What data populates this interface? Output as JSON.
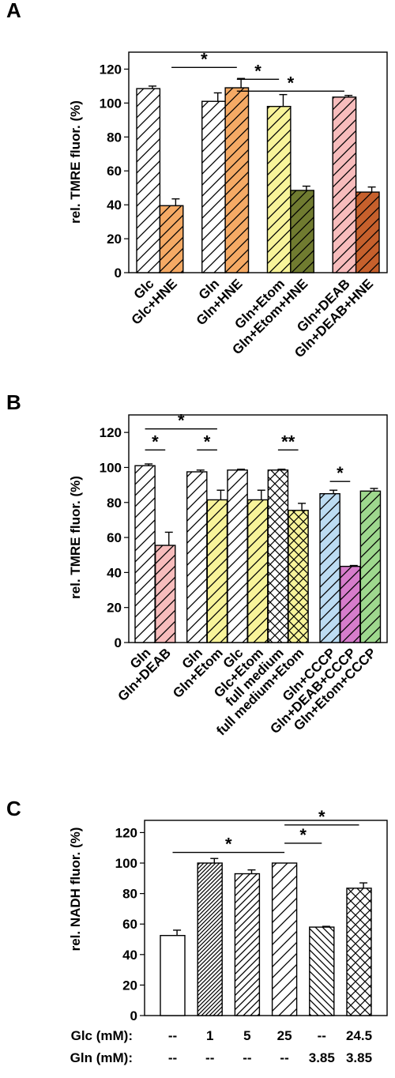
{
  "chart_data": [
    {
      "panel": "A",
      "type": "bar",
      "ylabel": "rel. TMRE fluor. (%)",
      "ylim": [
        0,
        130
      ],
      "yticks": [
        0,
        20,
        40,
        60,
        80,
        100,
        120
      ],
      "categories": [
        "Glc",
        "Glc+HNE",
        "Gln",
        "Gln+HNE",
        "Gln+Etom",
        "Gln+Etom+HNE",
        "Gln+DEAB",
        "Gln+DEAB+HNE"
      ],
      "values": [
        108.5,
        39.5,
        101,
        109,
        98,
        48.5,
        103.5,
        47.5
      ],
      "errors": [
        1.5,
        4,
        5,
        5.5,
        7,
        2.5,
        1,
        3
      ],
      "groups": [
        [
          0,
          1
        ],
        [
          2,
          3
        ],
        [
          4,
          5
        ],
        [
          6,
          7
        ]
      ],
      "colors": [
        "#ffffff",
        "#f5aa65",
        "#ffffff",
        "#f5aa65",
        "#f8f49a",
        "#707b30",
        "#f7bcbc",
        "#c6602c"
      ],
      "patterns": [
        "diag-wide",
        "diag-wide",
        "diag-wide",
        "diag-wide",
        "diag-wide",
        "diag-wide",
        "diag-wide",
        "diag-wide"
      ],
      "significance": [
        {
          "from": 1,
          "to": 3,
          "label": "*",
          "y": 121
        },
        {
          "from": 3,
          "to": 4,
          "label": "*",
          "y": 114
        },
        {
          "from": 3,
          "to": 6,
          "label": "*",
          "y": 107
        }
      ]
    },
    {
      "panel": "B",
      "type": "bar",
      "ylabel": "rel. TMRE fluor. (%)",
      "ylim": [
        0,
        130
      ],
      "yticks": [
        0,
        20,
        40,
        60,
        80,
        100,
        120
      ],
      "categories": [
        "Gln",
        "Gln+DEAB",
        "Gln",
        "Gln+Etom",
        "Glc",
        "Glc+Etom",
        "full medium",
        "full medium+Etom",
        "Gln+CCCP",
        "Gln+DEAB+CCCP",
        "Gln+Etom+CCCP"
      ],
      "values": [
        101,
        55.5,
        97.5,
        81.5,
        98.5,
        81.5,
        98.5,
        75.5,
        85,
        43.5,
        86.5
      ],
      "errors": [
        1,
        7.5,
        1,
        5.5,
        0.5,
        5.5,
        0.5,
        4,
        2,
        0.5,
        1.5
      ],
      "groups": [
        [
          0,
          1
        ],
        [
          2,
          3,
          4,
          5,
          6,
          7
        ],
        [
          8,
          9,
          10
        ]
      ],
      "colors": [
        "#ffffff",
        "#f7bcbc",
        "#ffffff",
        "#f8f49a",
        "#ffffff",
        "#f8f49a",
        "#ffffff",
        "#f8f49a",
        "#bcdcf2",
        "#d67ccb",
        "#9ed88e"
      ],
      "patterns": [
        "diag-wide",
        "diag-wide",
        "diag-wide",
        "diag-wide",
        "diag-wide",
        "diag-wide",
        "cross",
        "cross",
        "diag-wide",
        "diag-wide",
        "diag-wide"
      ],
      "significance": [
        {
          "from": 0,
          "to": 1,
          "label": "*",
          "y": 110
        },
        {
          "from": 0,
          "to": 3,
          "label": "*",
          "y": 122
        },
        {
          "from": 2,
          "to": 3,
          "label": "*",
          "y": 110
        },
        {
          "from": 6,
          "to": 7,
          "label": "**",
          "y": 110
        },
        {
          "from": 8,
          "to": 9,
          "label": "*",
          "y": 92
        }
      ]
    },
    {
      "panel": "C",
      "type": "bar",
      "ylabel": "rel. NADH fluor. (%)",
      "ylim": [
        0,
        128
      ],
      "yticks": [
        0,
        20,
        40,
        60,
        80,
        100,
        120
      ],
      "categories": [
        "",
        "",
        "",
        "",
        "",
        ""
      ],
      "values": [
        52.5,
        100,
        93,
        100,
        58,
        83.5
      ],
      "errors": [
        3.5,
        3,
        2.5,
        0,
        0.5,
        3.5
      ],
      "groups": [
        [
          0
        ],
        [
          1
        ],
        [
          2
        ],
        [
          3
        ],
        [
          4
        ],
        [
          5
        ]
      ],
      "colors": [
        "#ffffff",
        "#ffffff",
        "#ffffff",
        "#ffffff",
        "#ffffff",
        "#ffffff"
      ],
      "patterns": [
        "none",
        "diag-dense",
        "diag-med",
        "diag-wide",
        "diag-back",
        "cross"
      ],
      "significance": [
        {
          "from": 0,
          "to": 3,
          "label": "*",
          "y": 107
        },
        {
          "from": 3,
          "to": 4,
          "label": "*",
          "y": 113
        },
        {
          "from": 3,
          "to": 5,
          "label": "*",
          "y": 125
        }
      ],
      "conditions": [
        {
          "label": "Glc (mM):",
          "values": [
            "--",
            "1",
            "5",
            "25",
            "--",
            "24.5"
          ]
        },
        {
          "label": "Gln (mM):",
          "values": [
            "--",
            "--",
            "--",
            "--",
            "3.85",
            "3.85"
          ]
        }
      ]
    }
  ]
}
